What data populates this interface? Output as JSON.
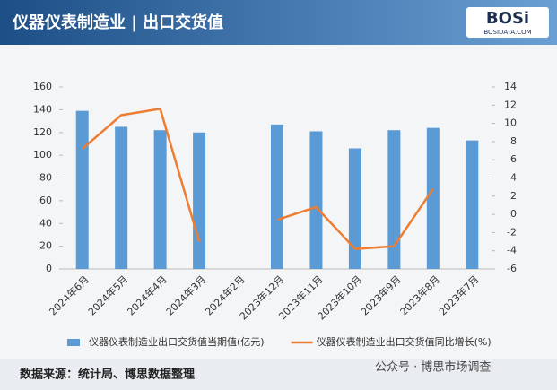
{
  "header": {
    "title": "仪器仪表制造业 | 出口交货值",
    "logo": "BOSi",
    "logo_sub": "BOSIDATA.COM"
  },
  "chart_data": {
    "type": "bar_line",
    "categories": [
      "2024年6月",
      "2024年5月",
      "2024年4月",
      "2024年3月",
      "2024年2月",
      "2023年12月",
      "2023年11月",
      "2023年10月",
      "2023年9月",
      "2023年8月",
      "2023年7月"
    ],
    "series": [
      {
        "name": "仪器仪表制造业出口交货值当期值(亿元)",
        "type": "bar",
        "color": "#5b9bd5",
        "values": [
          139,
          125,
          122,
          120,
          null,
          127,
          121,
          106,
          122,
          124,
          113
        ]
      },
      {
        "name": "仪器仪表制造业出口交货值同比增长(%)",
        "type": "line",
        "axis": "y2",
        "color": "#ed7d31",
        "values": [
          7.2,
          10.9,
          11.6,
          -3.0,
          null,
          -0.6,
          0.8,
          -3.8,
          -3.5,
          2.8,
          null
        ]
      }
    ],
    "ylim": [
      0,
      160
    ],
    "yticks": [
      0,
      20,
      40,
      60,
      80,
      100,
      120,
      140,
      160
    ],
    "y2lim": [
      -6,
      14
    ],
    "y2ticks": [
      -6,
      -4,
      -2,
      0,
      2,
      4,
      6,
      8,
      10,
      12,
      14
    ]
  },
  "footer": {
    "source": "数据来源：统计局、博思数据整理",
    "wechat": "公众号 · 博思市场调查"
  }
}
